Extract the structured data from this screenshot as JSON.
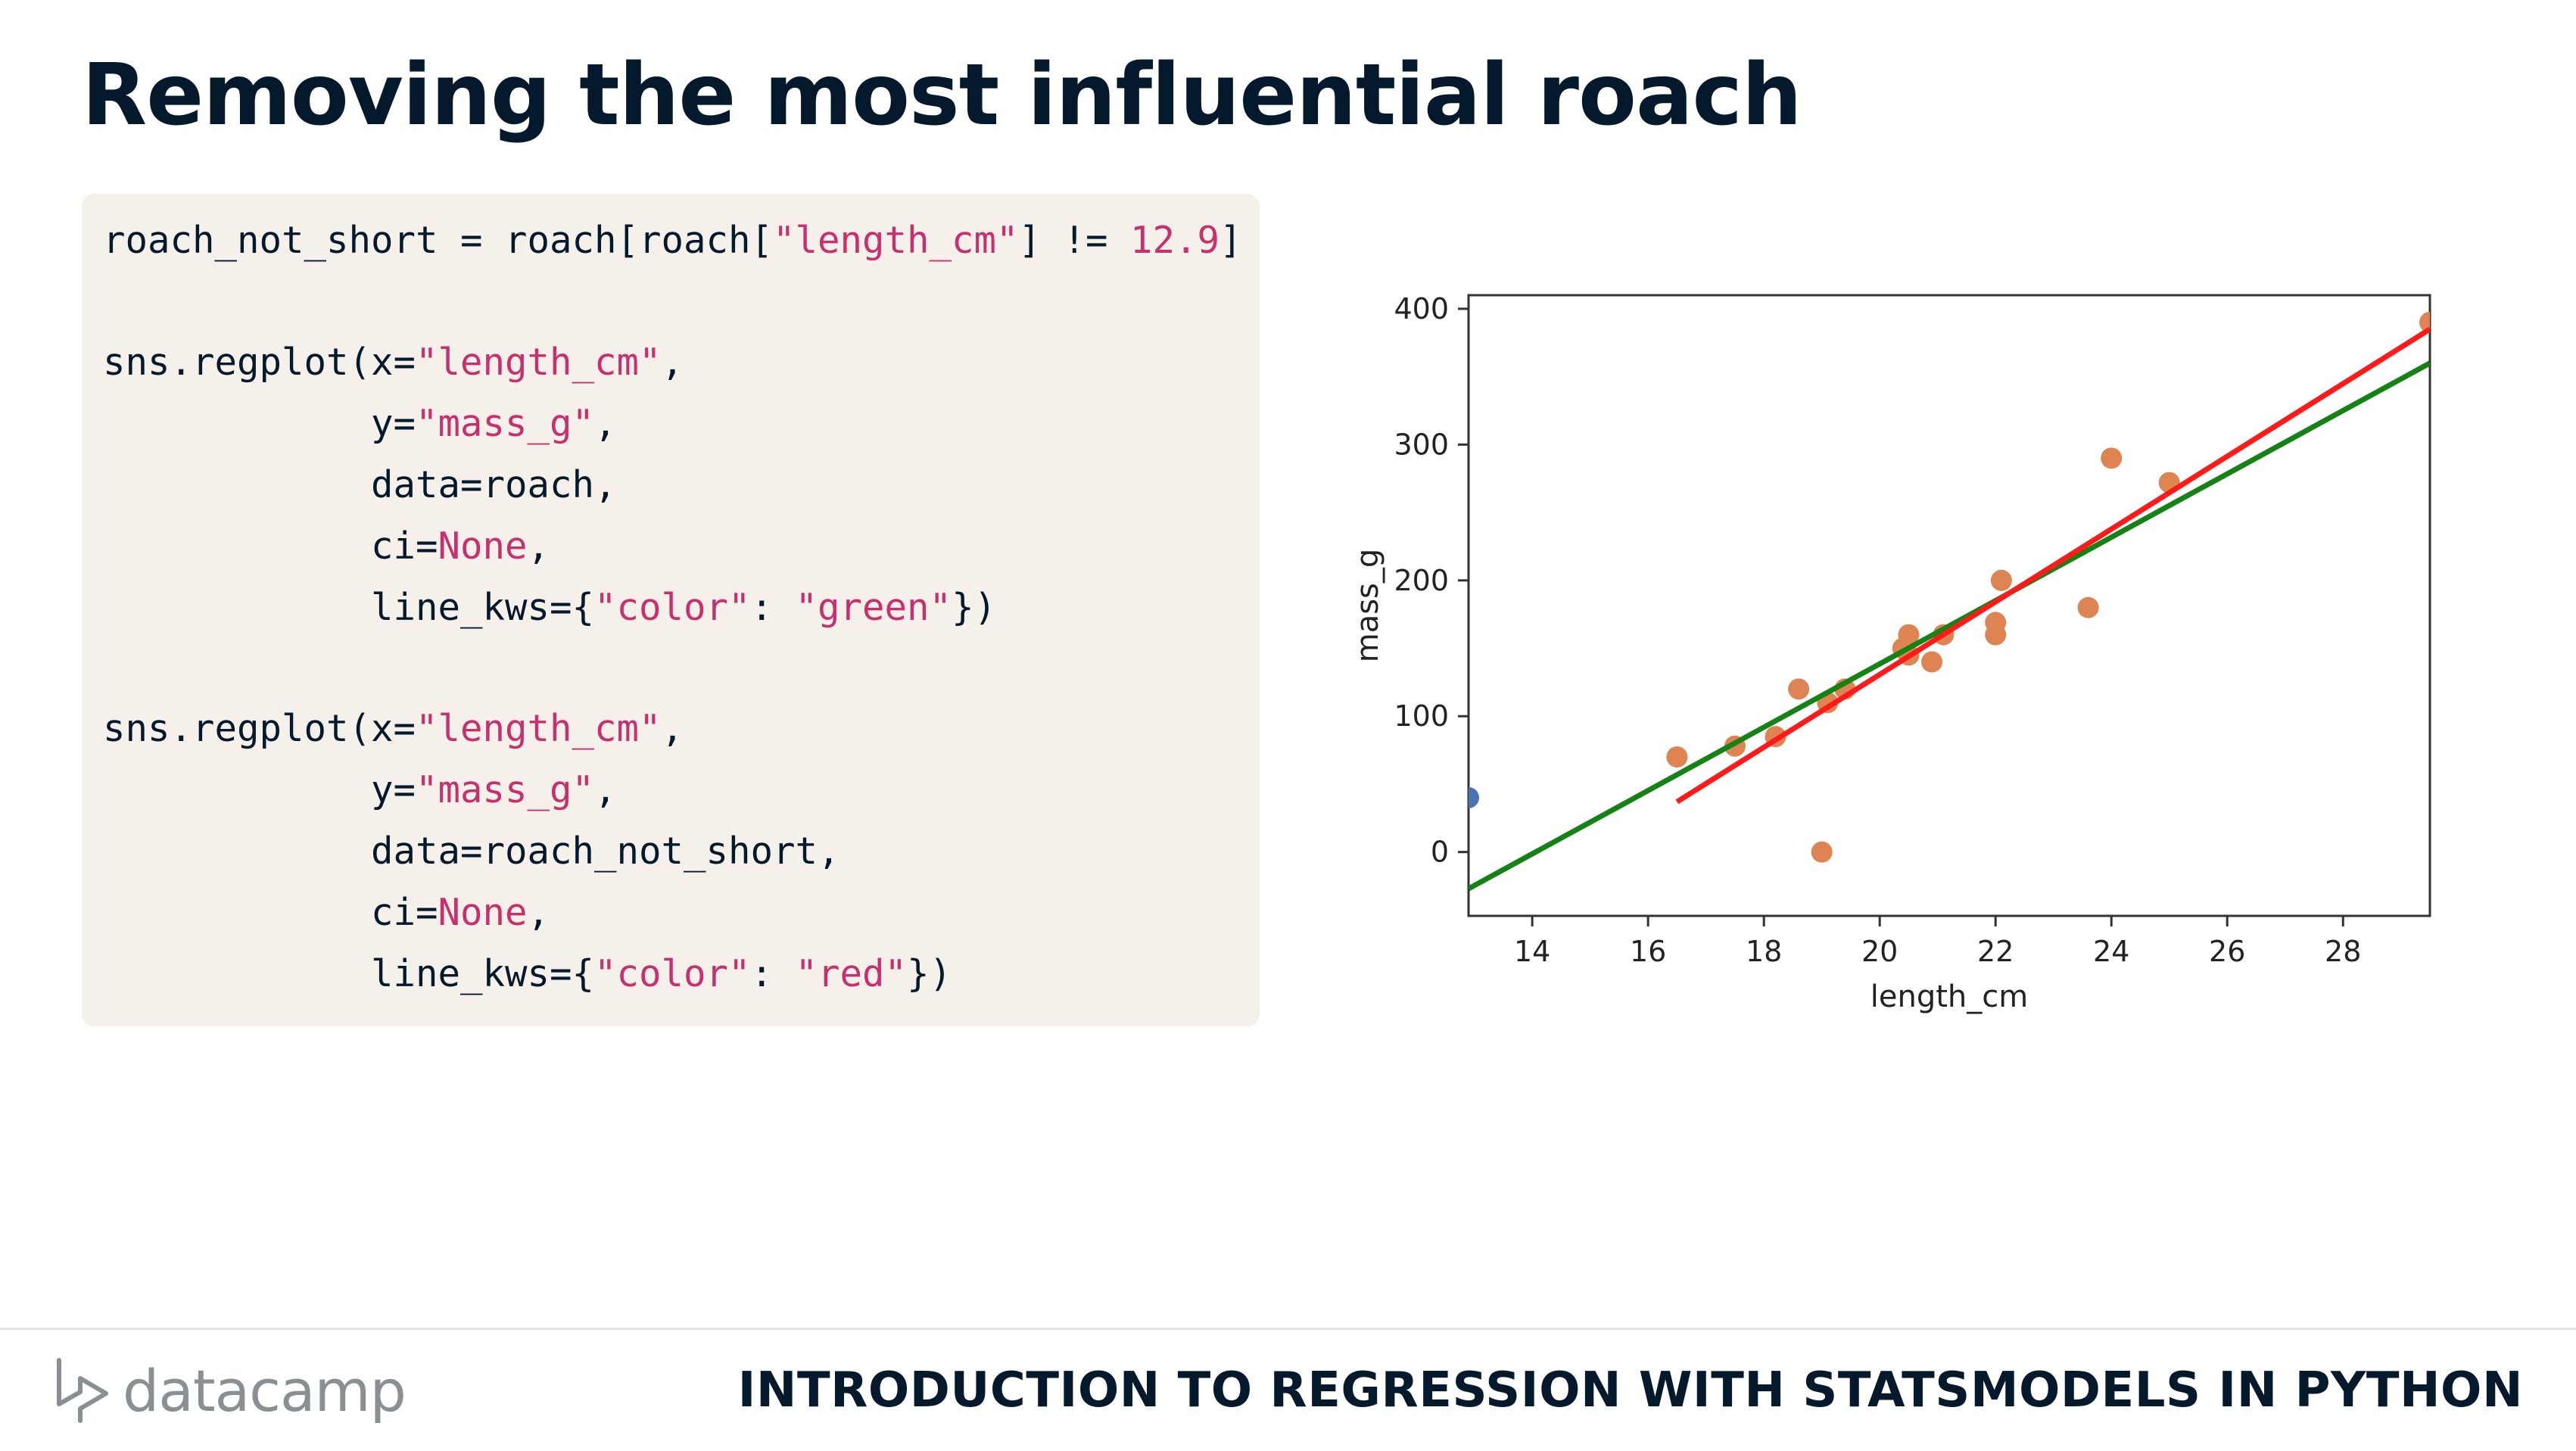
{
  "slide": {
    "title": "Removing the most influential roach",
    "course_title": "INTRODUCTION TO REGRESSION WITH STATSMODELS IN PYTHON",
    "logo_text": "datacamp",
    "logo_icon": "datacamp-logo-icon"
  },
  "code": {
    "line1": {
      "a": "roach_not_short = roach[roach[",
      "b": "\"length_cm\"",
      "c": "] != ",
      "d": "12.9",
      "e": "]"
    },
    "line3": {
      "a": "sns.regplot(x=",
      "b": "\"length_cm\"",
      "c": ","
    },
    "line4": {
      "a": "            y=",
      "b": "\"mass_g\"",
      "c": ","
    },
    "line5": {
      "a": "            data=roach,"
    },
    "line6": {
      "a": "            ci=",
      "b": "None",
      "c": ","
    },
    "line7": {
      "a": "            line_kws={",
      "b": "\"color\"",
      "c": ": ",
      "d": "\"green\"",
      "e": "})"
    },
    "line9": {
      "a": "sns.regplot(x=",
      "b": "\"length_cm\"",
      "c": ","
    },
    "line10": {
      "a": "            y=",
      "b": "\"mass_g\"",
      "c": ","
    },
    "line11": {
      "a": "            data=roach_not_short,"
    },
    "line12": {
      "a": "            ci=",
      "b": "None",
      "c": ","
    },
    "line13": {
      "a": "            line_kws={",
      "b": "\"color\"",
      "c": ": ",
      "d": "\"red\"",
      "e": "})"
    }
  },
  "chart_data": {
    "type": "scatter",
    "xlabel": "length_cm",
    "ylabel": "mass_g",
    "xlim": [
      12.9,
      29.5
    ],
    "ylim": [
      -47,
      410
    ],
    "xticks": [
      14,
      16,
      18,
      20,
      22,
      24,
      26,
      28
    ],
    "yticks": [
      0,
      100,
      200,
      300,
      400
    ],
    "grid": false,
    "colors": {
      "scatter_orange": "#dd8452",
      "scatter_blue": "#4c72b0",
      "green_line": "#148214",
      "red_line": "#ff1a1a"
    },
    "series": [
      {
        "color": "blue",
        "x": [
          12.9
        ],
        "y": [
          40
        ]
      },
      {
        "color": "orange",
        "x": [
          16.5,
          17.5,
          18.2,
          18.6,
          19.0,
          19.1,
          19.4,
          20.4,
          20.5,
          20.5,
          20.9,
          21.1,
          22.0,
          22.0,
          22.1,
          23.6,
          24.0,
          25.0,
          29.5
        ],
        "y": [
          70,
          78,
          85,
          120,
          0,
          110,
          120,
          150,
          160,
          145,
          140,
          160,
          160,
          169,
          200,
          180,
          290,
          272,
          390
        ]
      }
    ],
    "regression_lines": [
      {
        "color": "green",
        "x": [
          12.9,
          29.5
        ],
        "y": [
          -27,
          360
        ]
      },
      {
        "color": "red",
        "x": [
          16.5,
          29.5
        ],
        "y": [
          37,
          385
        ]
      }
    ]
  }
}
